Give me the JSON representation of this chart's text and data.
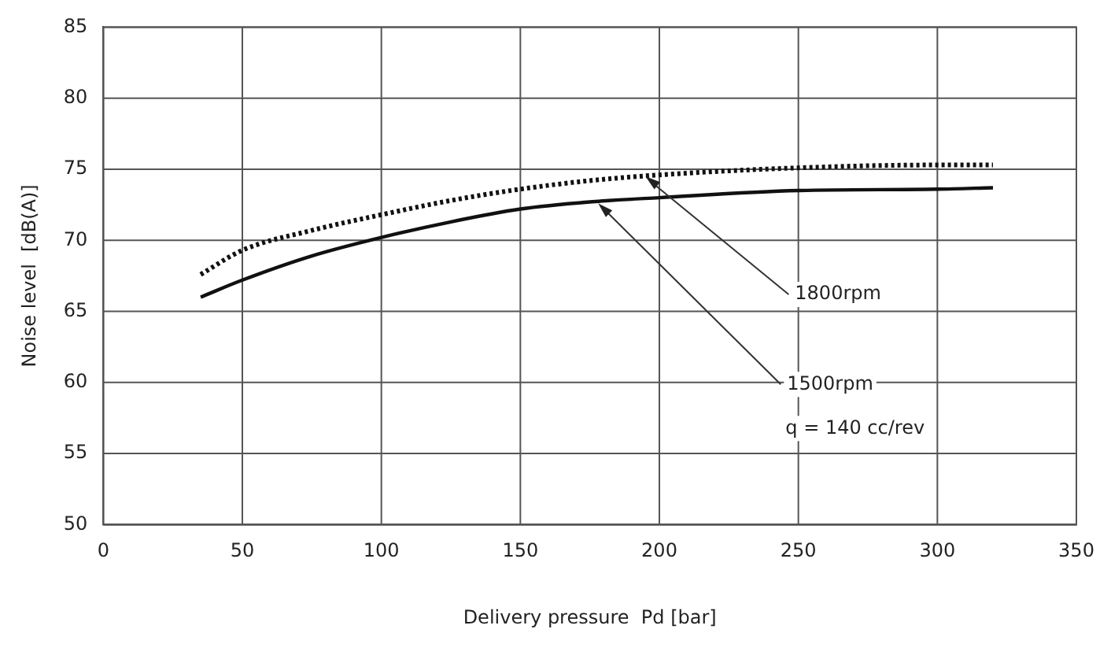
{
  "chart_data": {
    "type": "line",
    "xlabel": "Delivery pressure  Pd [bar]",
    "ylabel": "Noise level  [dB(A)]",
    "xlim": [
      0,
      350
    ],
    "xticks": [
      0,
      50,
      100,
      150,
      200,
      250,
      300,
      350
    ],
    "ylim": [
      50,
      85
    ],
    "yticks": [
      50,
      55,
      60,
      65,
      70,
      75,
      80,
      85
    ],
    "grid": true,
    "legend": false,
    "marker": "none",
    "series": [
      {
        "color": "#111111",
        "line_style": "dotted",
        "x": [
          35,
          50,
          75,
          100,
          125,
          150,
          175,
          200,
          250,
          300,
          320
        ],
        "values": [
          67.6,
          69.3,
          70.7,
          71.8,
          72.8,
          73.6,
          74.2,
          74.6,
          75.1,
          75.3,
          75.3
        ]
      },
      {
        "color": "#111111",
        "line_style": "solid",
        "x": [
          35,
          50,
          75,
          100,
          125,
          150,
          175,
          200,
          250,
          300,
          320
        ],
        "values": [
          66.0,
          67.2,
          68.9,
          70.2,
          71.3,
          72.2,
          72.7,
          73.0,
          73.5,
          73.6,
          73.7
        ]
      }
    ],
    "annotations": [
      {
        "text": "1800rpm",
        "x": 195,
        "y": 74.5
      },
      {
        "text": "1500rpm",
        "x": 178,
        "y": 72.6
      },
      "q = 140 cc/rev"
    ]
  }
}
